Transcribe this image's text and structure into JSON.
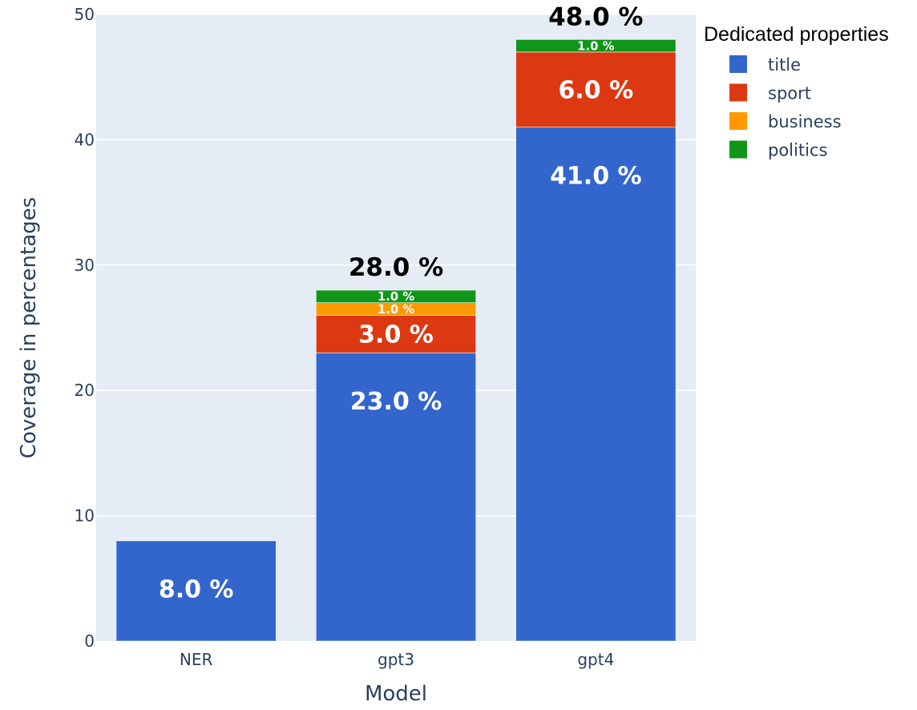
{
  "chart_data": {
    "type": "bar",
    "barmode": "stack",
    "categories": [
      "NER",
      "gpt3",
      "gpt4"
    ],
    "series": [
      {
        "name": "title",
        "values": [
          8,
          23,
          41
        ],
        "labels": [
          "8.0 %",
          "23.0 %",
          "41.0 %"
        ],
        "color": "#3366cc"
      },
      {
        "name": "sport",
        "values": [
          0,
          3,
          6
        ],
        "labels": [
          "",
          "3.0 %",
          "6.0 %"
        ],
        "color": "#dc3912"
      },
      {
        "name": "business",
        "values": [
          0,
          1,
          0
        ],
        "labels": [
          "",
          "1.0 %",
          ""
        ],
        "color": "#ff9900"
      },
      {
        "name": "politics",
        "values": [
          0,
          1,
          1
        ],
        "labels": [
          "",
          "1.0 %",
          "1.0 %"
        ],
        "color": "#109618"
      }
    ],
    "totals": [
      null,
      28,
      48
    ],
    "total_labels": [
      "",
      "28.0 %",
      "48.0 %"
    ],
    "xlabel": "Model",
    "ylabel": "Coverage in percentages",
    "ylim": [
      0,
      50
    ],
    "yticks": [
      0,
      10,
      20,
      30,
      40,
      50
    ],
    "grid": true,
    "plot_background": "#e5ecf6",
    "legend": {
      "title": "Dedicated properties",
      "position": "top-right"
    }
  }
}
